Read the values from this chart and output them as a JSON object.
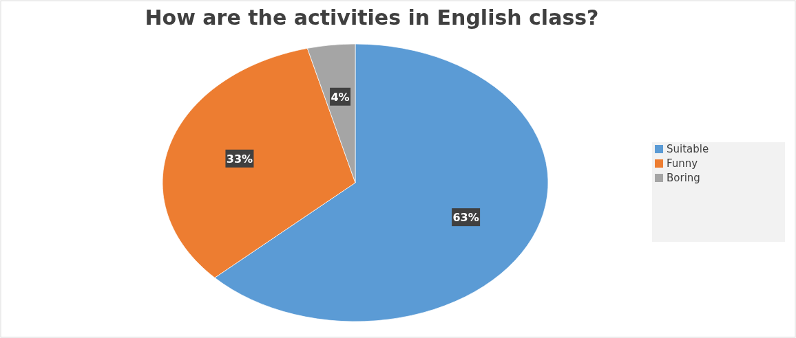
{
  "chart_data": {
    "type": "pie",
    "title": "How are the activities in English class?",
    "categories": [
      "Suitable",
      "Funny",
      "Boring"
    ],
    "values": [
      63,
      33,
      4
    ],
    "colors": [
      "#5b9bd5",
      "#ed7d31",
      "#a5a5a5"
    ],
    "value_labels": [
      "63%",
      "33%",
      "4%"
    ],
    "legend": "right"
  }
}
